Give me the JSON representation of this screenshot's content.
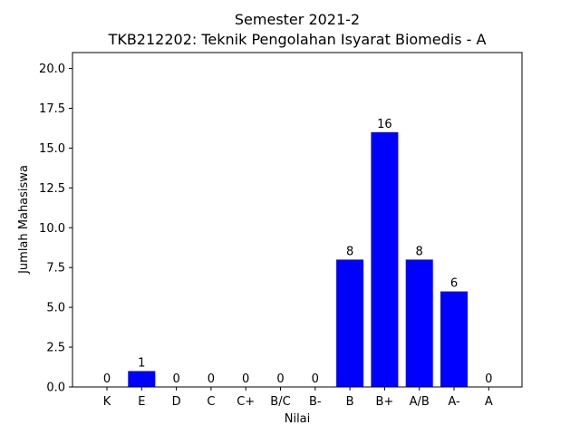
{
  "chart_data": {
    "type": "bar",
    "title_line1": "Semester 2021-2",
    "title_line2": "TKB212202: Teknik Pengolahan Isyarat Biomedis - A",
    "xlabel": "Nilai",
    "ylabel": "Jumlah Mahasiswa",
    "categories": [
      "K",
      "E",
      "D",
      "C",
      "C+",
      "B/C",
      "B-",
      "B",
      "B+",
      "A/B",
      "A-",
      "A"
    ],
    "values": [
      0,
      1,
      0,
      0,
      0,
      0,
      0,
      8,
      16,
      8,
      6,
      0
    ],
    "ylim": [
      0,
      21
    ],
    "yticks": [
      0.0,
      2.5,
      5.0,
      7.5,
      10.0,
      12.5,
      15.0,
      17.5,
      20.0
    ],
    "ytick_labels": [
      "0.0",
      "2.5",
      "5.0",
      "7.5",
      "10.0",
      "12.5",
      "15.0",
      "17.5",
      "20.0"
    ],
    "bar_color": "#0000ff",
    "grid": false,
    "legend": "none"
  }
}
